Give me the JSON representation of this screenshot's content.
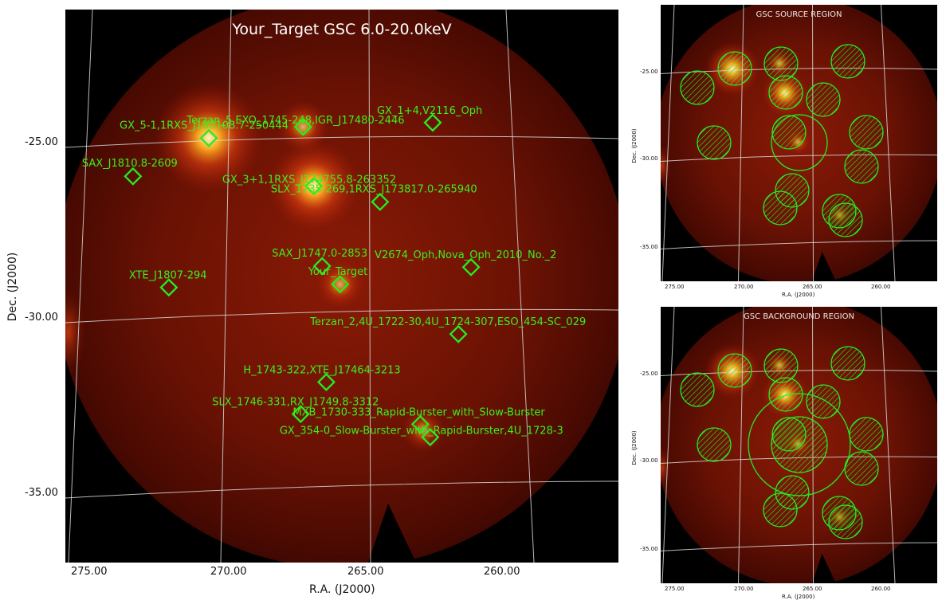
{
  "main": {
    "title": "Your_Target GSC 6.0-20.0keV",
    "xlabel": "R.A. (J2000)",
    "ylabel": "Dec. (J2000)",
    "x_ticks": [
      "275.00",
      "270.00",
      "265.00",
      "260.00"
    ],
    "y_ticks": [
      "-25.00",
      "-30.00",
      "-35.00"
    ],
    "sources": [
      {
        "label": "GX_5-1,1RXS_J180108.7-250444",
        "ra": 270.78,
        "dec": -24.87
      },
      {
        "label": "Terzan_5,EXO_1745-248,IGR_J17480-2446",
        "ra": 267.36,
        "dec": -24.55
      },
      {
        "label": "GX_1+4,V2116_Oph",
        "ra": 262.66,
        "dec": -24.43
      },
      {
        "label": "SAX_J1810.8-2609",
        "ra": 273.53,
        "dec": -25.96
      },
      {
        "label": "GX_3+1,1RXS_J174755.8-263352",
        "ra": 266.97,
        "dec": -26.24
      },
      {
        "label": "SLX_1735-269,1RXS_J173817.0-265940",
        "ra": 264.57,
        "dec": -26.69
      },
      {
        "label": "SAX_J1747.0-2853",
        "ra": 266.67,
        "dec": -28.52
      },
      {
        "label": "V2674_Oph,Nova_Oph_2010_No._2",
        "ra": 261.27,
        "dec": -28.55
      },
      {
        "label": "XTE_J1807-294",
        "ra": 272.23,
        "dec": -29.13
      },
      {
        "label": "Your_Target",
        "ra": 266.02,
        "dec": -29.04
      },
      {
        "label": "Terzan_2,4U_1722-30,4U_1724-307,ESO_454-SC_029",
        "ra": 261.73,
        "dec": -30.46
      },
      {
        "label": "H_1743-322,XTE_J17464-3213",
        "ra": 266.52,
        "dec": -31.83
      },
      {
        "label": "SLX_1746-331,RX_J1749.8-3312",
        "ra": 267.45,
        "dec": -32.74
      },
      {
        "label": "MXB_1730-333_Rapid-Burster_with_Slow-Burster",
        "ra": 263.11,
        "dec": -33.03
      },
      {
        "label": "GX_354-0_Slow-Burster_with_Rapid-Burster,4U_1728-3",
        "ra": 262.75,
        "dec": -33.4
      }
    ],
    "bright_spots": [
      {
        "ra": 270.78,
        "dec": -24.87,
        "strength": 1.0
      },
      {
        "ra": 266.97,
        "dec": -26.24,
        "strength": 0.8
      },
      {
        "ra": 267.36,
        "dec": -24.55,
        "strength": 0.35
      },
      {
        "ra": 266.02,
        "dec": -29.04,
        "strength": 0.3
      },
      {
        "ra": 263.0,
        "dec": -33.2,
        "strength": 0.25
      }
    ]
  },
  "source_region": {
    "title": "GSC SOURCE REGION",
    "xlabel": "R.A. (J2000)",
    "ylabel": "Dec. (J2000)",
    "x_ticks": [
      "275.00",
      "270.00",
      "265.00",
      "260.00"
    ],
    "y_ticks": [
      "-25.00",
      "-30.00",
      "-35.00"
    ]
  },
  "background_region": {
    "title": "GSC BACKGROUND REGION",
    "xlabel": "R.A. (J2000)",
    "ylabel": "Dec. (J2000)",
    "x_ticks": [
      "275.00",
      "270.00",
      "265.00",
      "260.00"
    ],
    "y_ticks": [
      "-25.00",
      "-30.00",
      "-35.00"
    ]
  },
  "colors": {
    "marker": "#22ee22",
    "label": "#3cf01e",
    "grid": "#d8d8d8",
    "background": "#000000",
    "field_dark": "#2a0400",
    "field_mid": "#6a1204",
    "field_bright": "#ffe7a0"
  }
}
